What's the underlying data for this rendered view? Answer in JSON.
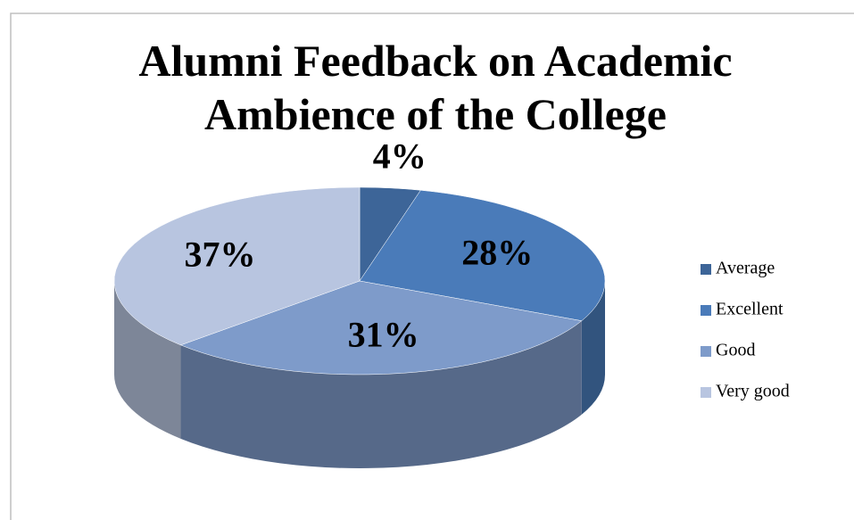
{
  "chart_data": {
    "type": "pie",
    "title": "Alumni Feedback on Academic Ambience of the College",
    "categories": [
      "Average",
      "Excellent",
      "Good",
      "Very good"
    ],
    "values": [
      4,
      28,
      31,
      37
    ],
    "value_labels": [
      "4%",
      "28%",
      "31%",
      "37%"
    ],
    "colors": [
      "#3d6598",
      "#4a7bb9",
      "#7e9bca",
      "#b8c5e0"
    ],
    "legend": "right"
  }
}
